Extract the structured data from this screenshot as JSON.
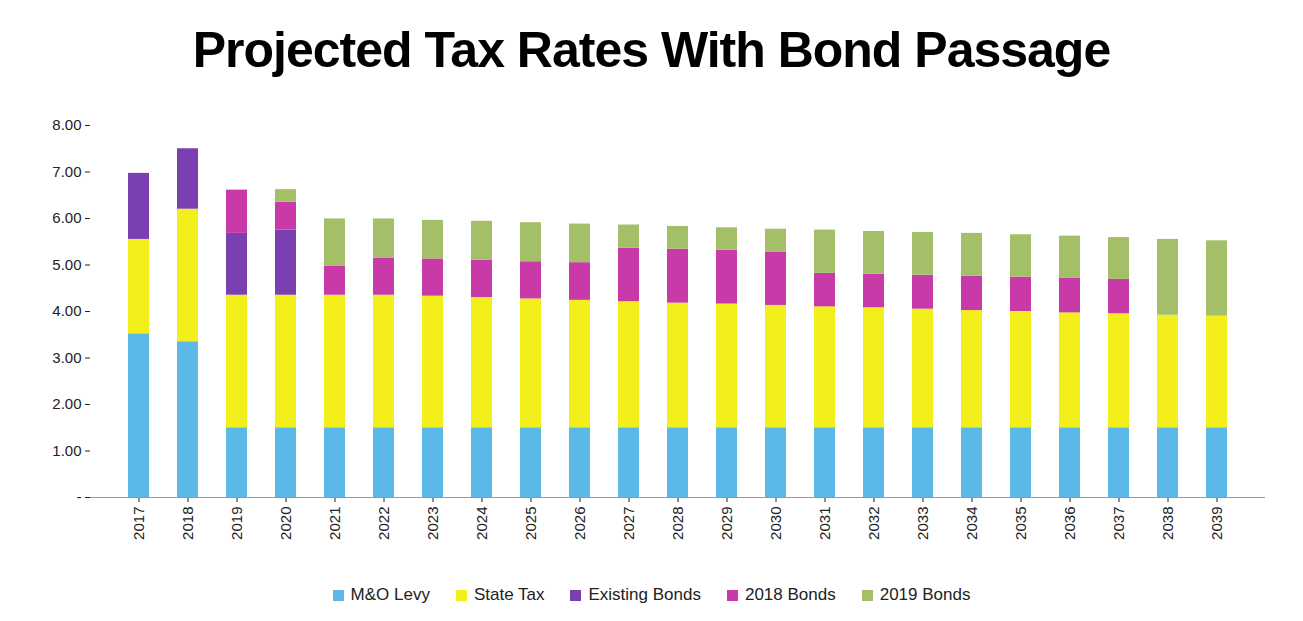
{
  "chart_data": {
    "type": "bar",
    "title": "Projected Tax Rates With Bond Passage",
    "stacked": true,
    "grid": false,
    "legend": "bottom",
    "categories": [
      "2017",
      "2018",
      "2019",
      "2020",
      "2021",
      "2022",
      "2023",
      "2024",
      "2025",
      "2026",
      "2027",
      "2028",
      "2029",
      "2030",
      "2031",
      "2032",
      "2033",
      "2034",
      "2035",
      "2036",
      "2037",
      "2038",
      "2039"
    ],
    "ylim": [
      0,
      8
    ],
    "yticks": [
      {
        "value": 0,
        "label": "-"
      },
      {
        "value": 1,
        "label": "1.00"
      },
      {
        "value": 2,
        "label": "2.00"
      },
      {
        "value": 3,
        "label": "3.00"
      },
      {
        "value": 4,
        "label": "4.00"
      },
      {
        "value": 5,
        "label": "5.00"
      },
      {
        "value": 6,
        "label": "6.00"
      },
      {
        "value": 7,
        "label": "7.00"
      },
      {
        "value": 8,
        "label": "8.00"
      }
    ],
    "series": [
      {
        "name": "M&O Levy",
        "color": "#5bb8e8",
        "values": [
          3.52,
          3.35,
          1.5,
          1.5,
          1.5,
          1.5,
          1.5,
          1.5,
          1.5,
          1.5,
          1.5,
          1.5,
          1.5,
          1.5,
          1.5,
          1.5,
          1.5,
          1.5,
          1.5,
          1.5,
          1.5,
          1.5,
          1.5
        ]
      },
      {
        "name": "State Tax",
        "color": "#f2ef1a",
        "values": [
          2.03,
          2.85,
          2.85,
          2.85,
          2.85,
          2.85,
          2.83,
          2.8,
          2.77,
          2.74,
          2.71,
          2.68,
          2.66,
          2.63,
          2.6,
          2.58,
          2.55,
          2.52,
          2.5,
          2.47,
          2.45,
          2.42,
          2.4
        ]
      },
      {
        "name": "Existing Bonds",
        "color": "#7a3fb0",
        "values": [
          1.42,
          1.3,
          1.33,
          1.4,
          0,
          0,
          0,
          0,
          0,
          0,
          0,
          0,
          0,
          0,
          0,
          0,
          0,
          0,
          0,
          0,
          0,
          0,
          0
        ]
      },
      {
        "name": "2018 Bonds",
        "color": "#c83aa8",
        "values": [
          0,
          0,
          0.93,
          0.6,
          0.62,
          0.8,
          0.8,
          0.8,
          0.8,
          0.81,
          1.15,
          1.16,
          1.16,
          1.15,
          0.72,
          0.72,
          0.73,
          0.74,
          0.74,
          0.75,
          0.74,
          0,
          0
        ]
      },
      {
        "name": "2019 Bonds",
        "color": "#a3c068",
        "values": [
          0,
          0,
          0,
          0.27,
          1.02,
          0.84,
          0.83,
          0.84,
          0.84,
          0.83,
          0.5,
          0.49,
          0.48,
          0.49,
          0.93,
          0.92,
          0.92,
          0.92,
          0.91,
          0.9,
          0.9,
          1.63,
          1.62
        ]
      }
    ]
  }
}
